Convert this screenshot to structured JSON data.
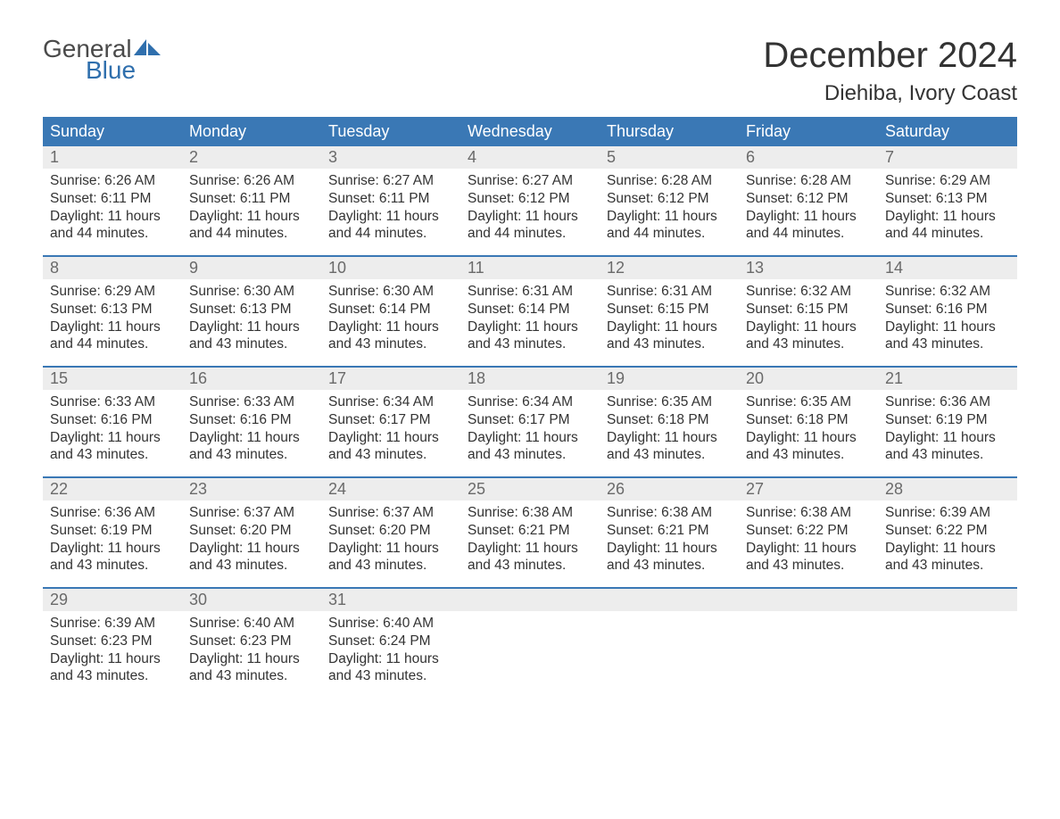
{
  "logo": {
    "top": "General",
    "bottom": "Blue",
    "accent_color": "#2f6fad"
  },
  "title": "December 2024",
  "location": "Diehiba, Ivory Coast",
  "colors": {
    "header_bg": "#3a78b5",
    "header_text": "#ffffff",
    "daynum_bg": "#ededed",
    "daynum_text": "#6a6a6a",
    "body_text": "#333333",
    "week_border": "#3a78b5",
    "page_bg": "#ffffff"
  },
  "day_headers": [
    "Sunday",
    "Monday",
    "Tuesday",
    "Wednesday",
    "Thursday",
    "Friday",
    "Saturday"
  ],
  "weeks": [
    [
      {
        "n": "1",
        "sunrise": "Sunrise: 6:26 AM",
        "sunset": "Sunset: 6:11 PM",
        "dl1": "Daylight: 11 hours",
        "dl2": "and 44 minutes."
      },
      {
        "n": "2",
        "sunrise": "Sunrise: 6:26 AM",
        "sunset": "Sunset: 6:11 PM",
        "dl1": "Daylight: 11 hours",
        "dl2": "and 44 minutes."
      },
      {
        "n": "3",
        "sunrise": "Sunrise: 6:27 AM",
        "sunset": "Sunset: 6:11 PM",
        "dl1": "Daylight: 11 hours",
        "dl2": "and 44 minutes."
      },
      {
        "n": "4",
        "sunrise": "Sunrise: 6:27 AM",
        "sunset": "Sunset: 6:12 PM",
        "dl1": "Daylight: 11 hours",
        "dl2": "and 44 minutes."
      },
      {
        "n": "5",
        "sunrise": "Sunrise: 6:28 AM",
        "sunset": "Sunset: 6:12 PM",
        "dl1": "Daylight: 11 hours",
        "dl2": "and 44 minutes."
      },
      {
        "n": "6",
        "sunrise": "Sunrise: 6:28 AM",
        "sunset": "Sunset: 6:12 PM",
        "dl1": "Daylight: 11 hours",
        "dl2": "and 44 minutes."
      },
      {
        "n": "7",
        "sunrise": "Sunrise: 6:29 AM",
        "sunset": "Sunset: 6:13 PM",
        "dl1": "Daylight: 11 hours",
        "dl2": "and 44 minutes."
      }
    ],
    [
      {
        "n": "8",
        "sunrise": "Sunrise: 6:29 AM",
        "sunset": "Sunset: 6:13 PM",
        "dl1": "Daylight: 11 hours",
        "dl2": "and 44 minutes."
      },
      {
        "n": "9",
        "sunrise": "Sunrise: 6:30 AM",
        "sunset": "Sunset: 6:13 PM",
        "dl1": "Daylight: 11 hours",
        "dl2": "and 43 minutes."
      },
      {
        "n": "10",
        "sunrise": "Sunrise: 6:30 AM",
        "sunset": "Sunset: 6:14 PM",
        "dl1": "Daylight: 11 hours",
        "dl2": "and 43 minutes."
      },
      {
        "n": "11",
        "sunrise": "Sunrise: 6:31 AM",
        "sunset": "Sunset: 6:14 PM",
        "dl1": "Daylight: 11 hours",
        "dl2": "and 43 minutes."
      },
      {
        "n": "12",
        "sunrise": "Sunrise: 6:31 AM",
        "sunset": "Sunset: 6:15 PM",
        "dl1": "Daylight: 11 hours",
        "dl2": "and 43 minutes."
      },
      {
        "n": "13",
        "sunrise": "Sunrise: 6:32 AM",
        "sunset": "Sunset: 6:15 PM",
        "dl1": "Daylight: 11 hours",
        "dl2": "and 43 minutes."
      },
      {
        "n": "14",
        "sunrise": "Sunrise: 6:32 AM",
        "sunset": "Sunset: 6:16 PM",
        "dl1": "Daylight: 11 hours",
        "dl2": "and 43 minutes."
      }
    ],
    [
      {
        "n": "15",
        "sunrise": "Sunrise: 6:33 AM",
        "sunset": "Sunset: 6:16 PM",
        "dl1": "Daylight: 11 hours",
        "dl2": "and 43 minutes."
      },
      {
        "n": "16",
        "sunrise": "Sunrise: 6:33 AM",
        "sunset": "Sunset: 6:16 PM",
        "dl1": "Daylight: 11 hours",
        "dl2": "and 43 minutes."
      },
      {
        "n": "17",
        "sunrise": "Sunrise: 6:34 AM",
        "sunset": "Sunset: 6:17 PM",
        "dl1": "Daylight: 11 hours",
        "dl2": "and 43 minutes."
      },
      {
        "n": "18",
        "sunrise": "Sunrise: 6:34 AM",
        "sunset": "Sunset: 6:17 PM",
        "dl1": "Daylight: 11 hours",
        "dl2": "and 43 minutes."
      },
      {
        "n": "19",
        "sunrise": "Sunrise: 6:35 AM",
        "sunset": "Sunset: 6:18 PM",
        "dl1": "Daylight: 11 hours",
        "dl2": "and 43 minutes."
      },
      {
        "n": "20",
        "sunrise": "Sunrise: 6:35 AM",
        "sunset": "Sunset: 6:18 PM",
        "dl1": "Daylight: 11 hours",
        "dl2": "and 43 minutes."
      },
      {
        "n": "21",
        "sunrise": "Sunrise: 6:36 AM",
        "sunset": "Sunset: 6:19 PM",
        "dl1": "Daylight: 11 hours",
        "dl2": "and 43 minutes."
      }
    ],
    [
      {
        "n": "22",
        "sunrise": "Sunrise: 6:36 AM",
        "sunset": "Sunset: 6:19 PM",
        "dl1": "Daylight: 11 hours",
        "dl2": "and 43 minutes."
      },
      {
        "n": "23",
        "sunrise": "Sunrise: 6:37 AM",
        "sunset": "Sunset: 6:20 PM",
        "dl1": "Daylight: 11 hours",
        "dl2": "and 43 minutes."
      },
      {
        "n": "24",
        "sunrise": "Sunrise: 6:37 AM",
        "sunset": "Sunset: 6:20 PM",
        "dl1": "Daylight: 11 hours",
        "dl2": "and 43 minutes."
      },
      {
        "n": "25",
        "sunrise": "Sunrise: 6:38 AM",
        "sunset": "Sunset: 6:21 PM",
        "dl1": "Daylight: 11 hours",
        "dl2": "and 43 minutes."
      },
      {
        "n": "26",
        "sunrise": "Sunrise: 6:38 AM",
        "sunset": "Sunset: 6:21 PM",
        "dl1": "Daylight: 11 hours",
        "dl2": "and 43 minutes."
      },
      {
        "n": "27",
        "sunrise": "Sunrise: 6:38 AM",
        "sunset": "Sunset: 6:22 PM",
        "dl1": "Daylight: 11 hours",
        "dl2": "and 43 minutes."
      },
      {
        "n": "28",
        "sunrise": "Sunrise: 6:39 AM",
        "sunset": "Sunset: 6:22 PM",
        "dl1": "Daylight: 11 hours",
        "dl2": "and 43 minutes."
      }
    ],
    [
      {
        "n": "29",
        "sunrise": "Sunrise: 6:39 AM",
        "sunset": "Sunset: 6:23 PM",
        "dl1": "Daylight: 11 hours",
        "dl2": "and 43 minutes."
      },
      {
        "n": "30",
        "sunrise": "Sunrise: 6:40 AM",
        "sunset": "Sunset: 6:23 PM",
        "dl1": "Daylight: 11 hours",
        "dl2": "and 43 minutes."
      },
      {
        "n": "31",
        "sunrise": "Sunrise: 6:40 AM",
        "sunset": "Sunset: 6:24 PM",
        "dl1": "Daylight: 11 hours",
        "dl2": "and 43 minutes."
      },
      {
        "empty": true
      },
      {
        "empty": true
      },
      {
        "empty": true
      },
      {
        "empty": true
      }
    ]
  ]
}
